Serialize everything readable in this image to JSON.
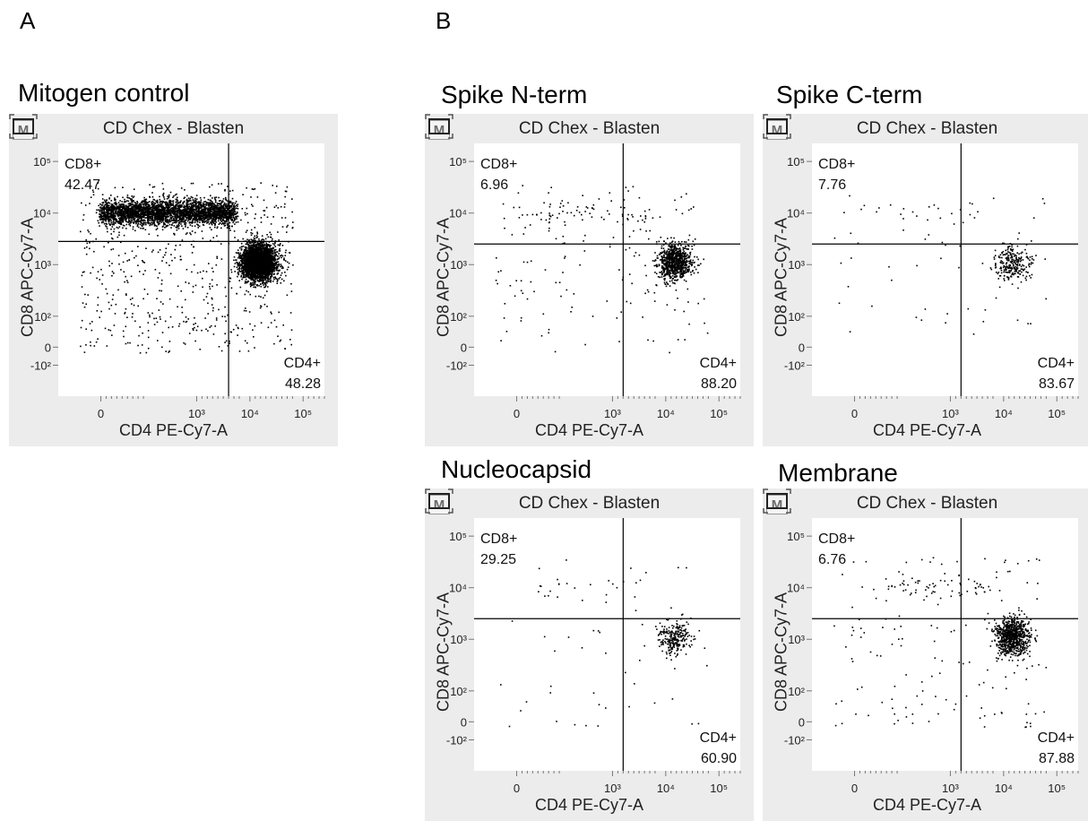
{
  "panel_labels": {
    "a": "A",
    "b": "B"
  },
  "chart_data": [
    {
      "type": "scatter",
      "panel_title": "Mitogen control",
      "gate_title": "CD Chex - Blasten",
      "xlabel": "CD4 PE-Cy7-A",
      "ylabel": "CD8 APC-Cy7-A",
      "x_ticks": [
        "0",
        "10³",
        "10⁴",
        "10⁵"
      ],
      "y_ticks": [
        "10⁵",
        "10⁴",
        "10³",
        "10²",
        "0",
        "-10²"
      ],
      "quadrants": [
        {
          "name": "CD8+",
          "percent": "42.47"
        },
        {
          "name": "CD4+",
          "percent": "48.28"
        }
      ],
      "gate_x": 3.6,
      "gate_y": 3.45,
      "density": "high"
    },
    {
      "type": "scatter",
      "panel_title": "Spike N-term",
      "gate_title": "CD Chex - Blasten",
      "xlabel": "CD4 PE-Cy7-A",
      "ylabel": "CD8 APC-Cy7-A",
      "x_ticks": [
        "0",
        "10³",
        "10⁴",
        "10⁵"
      ],
      "y_ticks": [
        "10⁵",
        "10⁴",
        "10³",
        "10²",
        "0",
        "-10²"
      ],
      "quadrants": [
        {
          "name": "CD8+",
          "percent": "6.96"
        },
        {
          "name": "CD4+",
          "percent": "88.20"
        }
      ],
      "gate_x": 3.2,
      "gate_y": 3.4,
      "density": "medium"
    },
    {
      "type": "scatter",
      "panel_title": "Spike C-term",
      "gate_title": "CD Chex - Blasten",
      "xlabel": "CD4 PE-Cy7-A",
      "ylabel": "CD8 APC-Cy7-A",
      "x_ticks": [
        "0",
        "10³",
        "10⁴",
        "10⁵"
      ],
      "y_ticks": [
        "10⁵",
        "10⁴",
        "10³",
        "10²",
        "0",
        "-10²"
      ],
      "quadrants": [
        {
          "name": "CD8+",
          "percent": "7.76"
        },
        {
          "name": "CD4+",
          "percent": "83.67"
        }
      ],
      "gate_x": 3.2,
      "gate_y": 3.4,
      "density": "low"
    },
    {
      "type": "scatter",
      "panel_title": "Nucleocapsid",
      "gate_title": "CD Chex - Blasten",
      "xlabel": "CD4 PE-Cy7-A",
      "ylabel": "CD8 APC-Cy7-A",
      "x_ticks": [
        "0",
        "10³",
        "10⁴",
        "10⁵"
      ],
      "y_ticks": [
        "10⁵",
        "10⁴",
        "10³",
        "10²",
        "0",
        "-10²"
      ],
      "quadrants": [
        {
          "name": "CD8+",
          "percent": "29.25"
        },
        {
          "name": "CD4+",
          "percent": "60.90"
        }
      ],
      "gate_x": 3.2,
      "gate_y": 3.4,
      "density": "low"
    },
    {
      "type": "scatter",
      "panel_title": "Membrane",
      "gate_title": "CD Chex - Blasten",
      "xlabel": "CD4 PE-Cy7-A",
      "ylabel": "CD8 APC-Cy7-A",
      "x_ticks": [
        "0",
        "10³",
        "10⁴",
        "10⁵"
      ],
      "y_ticks": [
        "10⁵",
        "10⁴",
        "10³",
        "10²",
        "0",
        "-10²"
      ],
      "quadrants": [
        {
          "name": "CD8+",
          "percent": "6.76"
        },
        {
          "name": "CD4+",
          "percent": "87.88"
        }
      ],
      "gate_x": 3.2,
      "gate_y": 3.4,
      "density": "medium"
    }
  ]
}
